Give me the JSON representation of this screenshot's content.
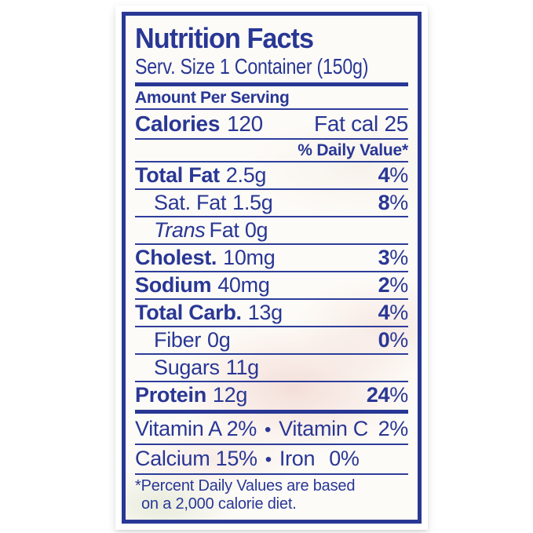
{
  "colors": {
    "blue": "#293795",
    "rule": "#2e3d9b",
    "label_bg": "#fdfbf7",
    "page_bg": "#ffffff"
  },
  "label": {
    "title": "Nutrition Facts",
    "serving_size": "Serv. Size 1 Container (150g)",
    "amount_per_serving": "Amount Per Serving",
    "calories": {
      "label": "Calories",
      "value": "120",
      "fat_cal": "Fat cal 25"
    },
    "daily_value_header": "% Daily Value*",
    "nutrients": [
      {
        "name": "Total Fat",
        "amount": "2.5g",
        "dv": "4",
        "pct": "%"
      },
      {
        "name": "Sat. Fat",
        "amount": "1.5g",
        "dv": "8",
        "pct": "%"
      },
      {
        "name": "Trans",
        "amount": "Fat 0g"
      },
      {
        "name": "Cholest.",
        "amount": "10mg",
        "dv": "3",
        "pct": "%"
      },
      {
        "name": "Sodium",
        "amount": "40mg",
        "dv": "2",
        "pct": "%"
      },
      {
        "name": "Total Carb.",
        "amount": "13g",
        "dv": "4",
        "pct": "%"
      },
      {
        "name": "Fiber",
        "amount": "0g",
        "dv": "0",
        "pct": "%"
      },
      {
        "name": "Sugars",
        "amount": "11g"
      },
      {
        "name": "Protein",
        "amount": "12g",
        "dv": "24",
        "pct": "%"
      }
    ],
    "micronutrients": [
      {
        "first": "Vitamin A 2%",
        "bullet": "•",
        "second": "Vitamin C",
        "second_value": "2%"
      },
      {
        "first": "Calcium 15%",
        "bullet": "•",
        "second": "Iron",
        "second_value": "0%"
      }
    ],
    "footnote": {
      "line1": "*Percent Daily Values are based",
      "line2": "on a 2,000 calorie diet."
    }
  }
}
